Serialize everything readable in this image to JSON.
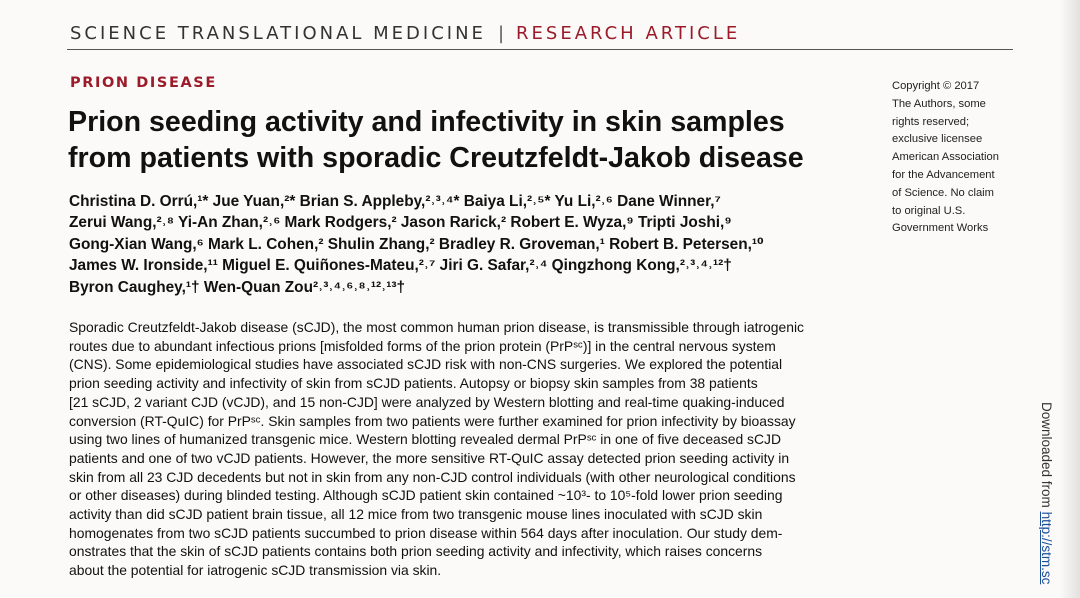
{
  "header": {
    "journal": "SCIENCE TRANSLATIONAL MEDICINE",
    "separator": "|",
    "article_type": "RESEARCH ARTICLE"
  },
  "section_label": "PRION DISEASE",
  "title_lines": [
    "Prion seeding activity and infectivity in skin samples",
    "from patients with sporadic Creutzfeldt-Jakob disease"
  ],
  "author_lines": [
    "Christina D. Orrú,¹* Jue Yuan,²* Brian S. Appleby,²˒³˒⁴* Baiya Li,²˒⁵* Yu Li,²˒⁶ Dane Winner,⁷",
    "Zerui Wang,²˒⁸ Yi-An Zhan,²˒⁶ Mark Rodgers,² Jason Rarick,² Robert E. Wyza,⁹ Tripti Joshi,⁹",
    "Gong-Xian Wang,⁶ Mark L. Cohen,² Shulin Zhang,² Bradley R. Groveman,¹ Robert B. Petersen,¹⁰",
    "James W. Ironside,¹¹ Miguel E. Quiñones-Mateu,²˒⁷ Jiri G. Safar,²˒⁴ Qingzhong Kong,²˒³˒⁴˒¹²†",
    "Byron Caughey,¹† Wen-Quan Zou²˒³˒⁴˒⁶˒⁸˒¹²˒¹³†"
  ],
  "copyright_lines": [
    "Copyright © 2017",
    "The Authors, some",
    "rights reserved;",
    "exclusive licensee",
    "American Association",
    "for the Advancement",
    "of Science. No claim",
    "to original U.S.",
    "Government Works"
  ],
  "abstract_lines": [
    "Sporadic Creutzfeldt-Jakob disease (sCJD), the most common human prion disease, is transmissible through iatrogenic",
    "routes due to abundant infectious prions [misfolded forms of the prion protein (PrPˢᶜ)] in the central nervous system",
    "(CNS). Some epidemiological studies have associated sCJD risk with non-CNS surgeries. We explored the potential",
    "prion seeding activity and infectivity of skin from sCJD patients. Autopsy or biopsy skin samples from 38 patients",
    "[21 sCJD, 2 variant CJD (vCJD), and 15 non-CJD] were analyzed by Western blotting and real-time quaking-induced",
    "conversion (RT-QuIC) for PrPˢᶜ. Skin samples from two patients were further examined for prion infectivity by bioassay",
    "using two lines of humanized transgenic mice. Western blotting revealed dermal PrPˢᶜ in one of five deceased sCJD",
    "patients and one of two vCJD patients. However, the more sensitive RT-QuIC assay detected prion seeding activity in",
    "skin from all 23 CJD decedents but not in skin from any non-CJD control individuals (with other neurological conditions",
    "or other diseases) during blinded testing. Although sCJD patient skin contained ~10³- to 10⁵-fold lower prion seeding",
    "activity than did sCJD patient brain tissue, all 12 mice from two transgenic mouse lines inoculated with sCJD skin",
    "homogenates from two sCJD patients succumbed to prion disease within 564 days after inoculation. Our study dem-",
    "onstrates that the skin of sCJD patients contains both prion seeding activity and infectivity, which raises concerns",
    "about the potential for iatrogenic sCJD transmission via skin."
  ],
  "sidebar": {
    "prefix": "Downloaded from ",
    "link": "http://stm.sc"
  }
}
